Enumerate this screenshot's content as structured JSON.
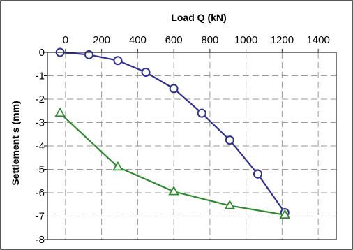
{
  "chart_data": {
    "type": "line",
    "xlabel": "Load Q (kN)",
    "ylabel": "Settlement    s (mm)",
    "x_axis_position": "top",
    "xlim": [
      -100,
      1500
    ],
    "ylim": [
      -8,
      0
    ],
    "x_ticks": [
      0,
      200,
      400,
      600,
      800,
      1000,
      1200,
      1400
    ],
    "x_tick_labels": [
      "0",
      "200",
      "400",
      "600",
      "800",
      "1000",
      "1200",
      "1400"
    ],
    "y_ticks": [
      0,
      -1,
      -2,
      -3,
      -4,
      -5,
      -6,
      -7,
      -8
    ],
    "y_tick_labels": [
      "0",
      "-1",
      "-2",
      "-3",
      "-4",
      "-5",
      "-6",
      "-7",
      "-8"
    ],
    "grid": true,
    "legend": "none",
    "series": [
      {
        "marker": "circle",
        "color": "#2e3192",
        "marker_fill": "#ffffff",
        "x": [
          -30,
          130,
          290,
          445,
          600,
          755,
          910,
          1065,
          1215
        ],
        "y": [
          0,
          -0.1,
          -0.35,
          -0.85,
          -1.55,
          -2.6,
          -3.75,
          -5.2,
          -6.85
        ]
      },
      {
        "marker": "triangle",
        "color": "#2e8b2e",
        "marker_fill": "#ffffff",
        "x": [
          -30,
          290,
          600,
          910,
          1215
        ],
        "y": [
          -2.6,
          -4.9,
          -5.95,
          -6.55,
          -6.95
        ]
      }
    ]
  }
}
